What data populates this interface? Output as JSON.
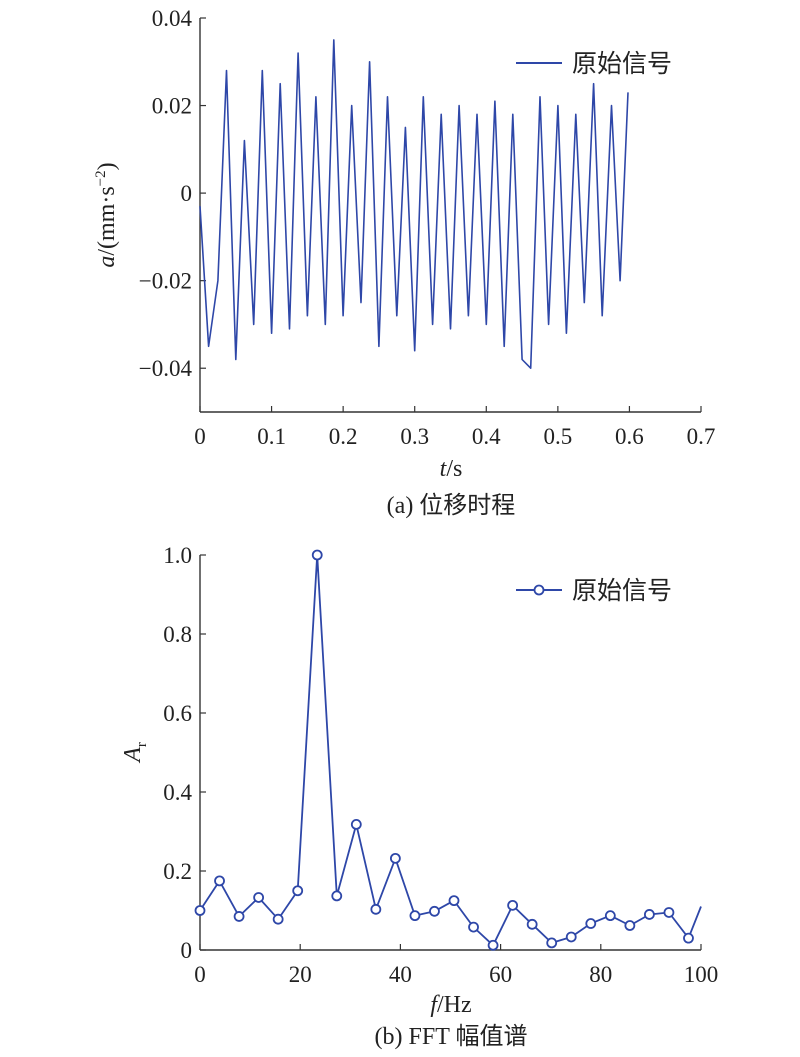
{
  "chart_data": [
    {
      "type": "line",
      "xlim": [
        0,
        0.7
      ],
      "ylim": [
        -0.05,
        0.04
      ],
      "x_ticks": [
        "0",
        "0.1",
        "0.2",
        "0.3",
        "0.4",
        "0.5",
        "0.6",
        "0.7"
      ],
      "y_ticks": [
        "−0.04",
        "−0.02",
        "0",
        "0.02",
        "0.04"
      ],
      "x_tick_values": [
        0,
        0.1,
        0.2,
        0.3,
        0.4,
        0.5,
        0.6,
        0.7
      ],
      "y_tick_values": [
        -0.04,
        -0.02,
        0,
        0.02,
        0.04
      ],
      "xlabel": {
        "var": "t",
        "unit": "/s"
      },
      "ylabel": {
        "var": "a",
        "unit": "/(mm·s",
        "sup": "−2",
        "close": ")"
      },
      "caption": "(a) 位移时程",
      "legend": {
        "position": "top-right",
        "entries": [
          "原始信号"
        ]
      },
      "grid": false,
      "color": "#2e47a8",
      "signal_note_x_range": [
        0,
        0.598
      ],
      "series": [
        {
          "name": "原始信号",
          "x": [
            0,
            0.012,
            0.025,
            0.037,
            0.05,
            0.062,
            0.075,
            0.087,
            0.1,
            0.112,
            0.125,
            0.137,
            0.15,
            0.162,
            0.175,
            0.187,
            0.2,
            0.212,
            0.225,
            0.237,
            0.25,
            0.262,
            0.275,
            0.287,
            0.3,
            0.312,
            0.325,
            0.337,
            0.35,
            0.362,
            0.375,
            0.387,
            0.4,
            0.412,
            0.425,
            0.437,
            0.45,
            0.462,
            0.475,
            0.487,
            0.5,
            0.512,
            0.525,
            0.537,
            0.55,
            0.562,
            0.575,
            0.587,
            0.598
          ],
          "y": [
            -0.003,
            -0.035,
            -0.02,
            0.028,
            -0.038,
            0.012,
            -0.03,
            0.028,
            -0.032,
            0.025,
            -0.031,
            0.032,
            -0.028,
            0.022,
            -0.03,
            0.035,
            -0.028,
            0.02,
            -0.025,
            0.03,
            -0.035,
            0.022,
            -0.028,
            0.015,
            -0.036,
            0.022,
            -0.03,
            0.018,
            -0.031,
            0.02,
            -0.028,
            0.018,
            -0.03,
            0.021,
            -0.035,
            0.018,
            -0.038,
            -0.04,
            0.022,
            -0.03,
            0.02,
            -0.032,
            0.018,
            -0.025,
            0.025,
            -0.028,
            0.02,
            -0.02,
            0.023
          ]
        }
      ]
    },
    {
      "type": "line",
      "xlim": [
        0,
        100
      ],
      "ylim": [
        0,
        1.0
      ],
      "x_ticks": [
        "0",
        "20",
        "40",
        "60",
        "80",
        "100"
      ],
      "y_ticks": [
        "0",
        "0.2",
        "0.4",
        "0.6",
        "0.8",
        "1.0"
      ],
      "x_tick_values": [
        0,
        20,
        40,
        60,
        80,
        100
      ],
      "y_tick_values": [
        0,
        0.2,
        0.4,
        0.6,
        0.8,
        1.0
      ],
      "xlabel": {
        "var": "f",
        "unit": "/Hz"
      },
      "ylabel": {
        "var": "A",
        "sub": "r"
      },
      "caption": "(b) FFT 幅值谱",
      "legend": {
        "position": "top-right",
        "entries": [
          "原始信号"
        ]
      },
      "grid": false,
      "color": "#2e47a8",
      "markers": "circle",
      "series": [
        {
          "name": "原始信号",
          "x": [
            0,
            3.9,
            7.8,
            11.7,
            15.6,
            19.5,
            23.4,
            27.3,
            31.2,
            35.1,
            39.0,
            42.9,
            46.8,
            50.7,
            54.6,
            58.5,
            62.4,
            66.3,
            70.2,
            74.1,
            78.0,
            81.9,
            85.8,
            89.7,
            93.6,
            97.5,
            100
          ],
          "y": [
            0.1,
            0.175,
            0.085,
            0.133,
            0.078,
            0.15,
            1.0,
            0.137,
            0.318,
            0.103,
            0.232,
            0.087,
            0.098,
            0.125,
            0.058,
            0.012,
            0.113,
            0.065,
            0.018,
            0.033,
            0.067,
            0.087,
            0.062,
            0.09,
            0.095,
            0.03,
            0.11
          ],
          "marker_on": [
            true,
            true,
            true,
            true,
            true,
            true,
            true,
            true,
            true,
            true,
            true,
            true,
            true,
            true,
            true,
            true,
            true,
            true,
            true,
            true,
            true,
            true,
            true,
            true,
            true,
            true,
            false
          ]
        }
      ]
    }
  ]
}
